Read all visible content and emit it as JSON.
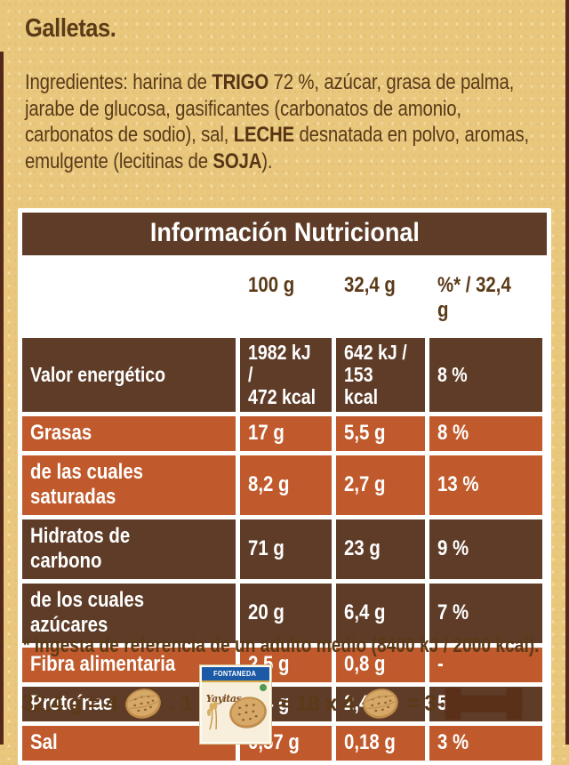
{
  "product": {
    "title": "Galletas."
  },
  "ingredients": {
    "segments": [
      {
        "text": "Ingredientes: harina de ",
        "bold": false
      },
      {
        "text": "TRIGO",
        "bold": true
      },
      {
        "text": " 72 %, azúcar, grasa de palma, jarabe de glucosa, gasificantes (carbonatos de amonio, carbonatos de sodio), sal, ",
        "bold": false
      },
      {
        "text": "LECHE",
        "bold": true
      },
      {
        "text": " desnatada en polvo, aromas, emulgente (lecitinas de ",
        "bold": false
      },
      {
        "text": "SOJA",
        "bold": true
      },
      {
        "text": ").",
        "bold": false
      }
    ]
  },
  "nutrition_table": {
    "title": "Información Nutricional",
    "column_headers": [
      "100 g",
      "32,4 g",
      "%* / 32,4 g"
    ],
    "rows": [
      {
        "label": "Valor energético",
        "per_100g": "1982 kJ /\n472 kcal",
        "per_portion": "642 kJ /\n153 kcal",
        "percent": "8 %",
        "theme": "brown"
      },
      {
        "label": "Grasas",
        "per_100g": "17 g",
        "per_portion": "5,5 g",
        "percent": "8 %",
        "theme": "orange"
      },
      {
        "label": "de las cuales saturadas",
        "per_100g": "8,2 g",
        "per_portion": "2,7 g",
        "percent": "13 %",
        "theme": "orange"
      },
      {
        "label": "Hidratos de carbono",
        "per_100g": "71 g",
        "per_portion": "23 g",
        "percent": "9 %",
        "theme": "brown"
      },
      {
        "label": "de los cuales azúcares",
        "per_100g": "20 g",
        "per_portion": "6,4 g",
        "percent": "7 %",
        "theme": "brown"
      },
      {
        "label": "Fibra alimentaria",
        "per_100g": "2,5 g",
        "per_portion": "0,8 g",
        "percent": "-",
        "theme": "orange"
      },
      {
        "label": "Proteínas",
        "per_100g": "7,4 g",
        "per_portion": "2,4 g",
        "percent": "5 %",
        "theme": "brown"
      },
      {
        "label": "Sal",
        "per_100g": "0,57 g",
        "per_portion": "0,18 g",
        "percent": "3 %",
        "theme": "orange"
      }
    ]
  },
  "footnote": "* Ingesta de referencia de un adulto medio (8400 kJ / 2000 kcal).",
  "serving_equation": {
    "part_1": "32,4 g = 4",
    "part_2": ". 1",
    "part_3": "≈ 18 x 4",
    "part_4": "= 3",
    "package": {
      "brand": "FONTANEDA",
      "product_name": "Yayitas"
    }
  },
  "colors": {
    "paper": "#e9c87e",
    "text_brown": "#5b3a18",
    "row_brown": "#5e3c27",
    "row_orange": "#c05a2c",
    "table_background": "#ffffff",
    "package_blue": "#1c5aa6",
    "edge_strip": "#56281a"
  }
}
